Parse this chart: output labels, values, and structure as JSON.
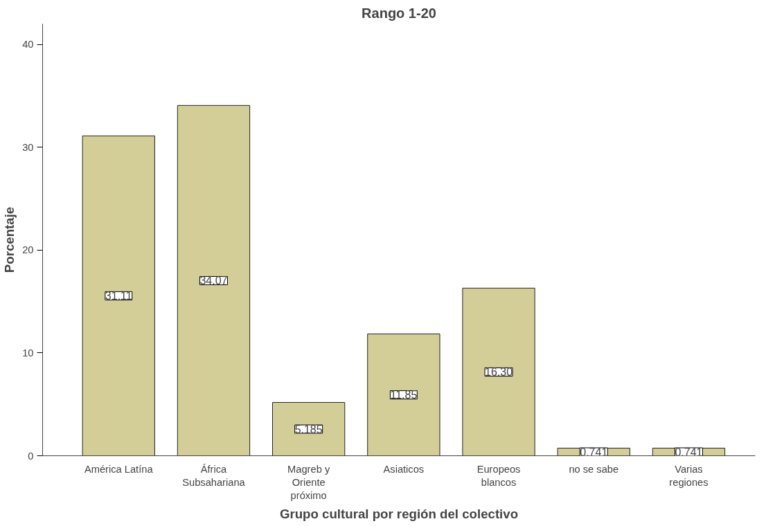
{
  "chart_data": {
    "type": "bar",
    "title": "Rango 1-20",
    "xlabel": "Grupo cultural por región del colectivo",
    "ylabel": "Porcentaje",
    "categories": [
      "América Latína",
      "África Subsahariana",
      "Magreb y Oriente próximo",
      "Asiaticos",
      "Europeos blancos",
      "no se sabe",
      "Varias regiones"
    ],
    "values": [
      31.11,
      34.07,
      5.185,
      11.85,
      16.3,
      0.741,
      0.741
    ],
    "value_labels": [
      "31.11",
      "34.07",
      "5.185",
      "11.85",
      "16.30",
      "0.741",
      "0.741"
    ],
    "color": "#d3ce97",
    "ylim": [
      0,
      42
    ],
    "yticks": [
      0,
      10,
      20,
      30,
      40
    ],
    "grid": false
  }
}
